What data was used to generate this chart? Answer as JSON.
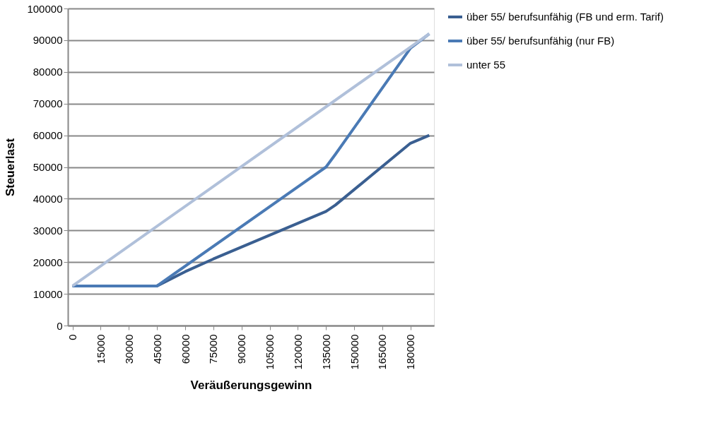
{
  "chart_data": {
    "type": "line",
    "xlabel": "Veräußerungsgewinn",
    "ylabel": "Steuerlast",
    "xlim": [
      -2500,
      192500
    ],
    "xticks": [
      0,
      15000,
      30000,
      45000,
      60000,
      75000,
      90000,
      105000,
      120000,
      135000,
      150000,
      165000,
      180000
    ],
    "ylim": [
      0,
      100000
    ],
    "yticks": [
      0,
      10000,
      20000,
      30000,
      40000,
      50000,
      60000,
      70000,
      80000,
      90000,
      100000
    ],
    "grid": "y",
    "legend": "right",
    "marker": "none",
    "line_style": "solid",
    "series": [
      {
        "name": "über 55/ berufsunfähig (FB und erm. Tarif)",
        "color": "#3a5f91",
        "x": [
          0,
          45000,
          60000,
          75000,
          135000,
          140000,
          180000,
          190000
        ],
        "values": [
          12500,
          12500,
          17000,
          21000,
          36000,
          38000,
          57500,
          60000
        ]
      },
      {
        "name": "über 55/ berufsunfähig (nur FB)",
        "color": "#4a7ab5",
        "x": [
          0,
          45000,
          135000,
          140000,
          180000,
          190000
        ],
        "values": [
          12500,
          12500,
          50000,
          54000,
          87500,
          92000
        ]
      },
      {
        "name": "unter 55",
        "color": "#b0c0da",
        "x": [
          0,
          190000
        ],
        "values": [
          12500,
          92000
        ]
      }
    ]
  }
}
